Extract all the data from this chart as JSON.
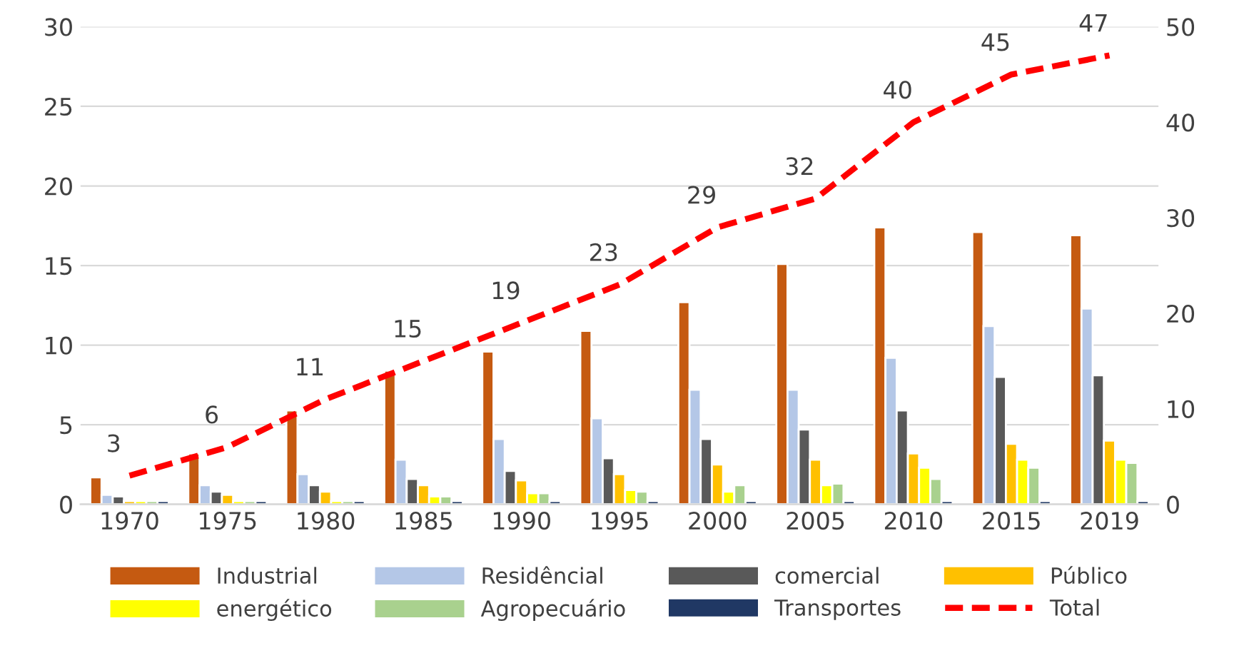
{
  "chart_data": {
    "type": "bar",
    "categories": [
      "1970",
      "1975",
      "1980",
      "1985",
      "1990",
      "1995",
      "2000",
      "2005",
      "2010",
      "2015",
      "2019"
    ],
    "series": [
      {
        "name": "Industrial",
        "color": "#c55a11",
        "values": [
          1.7,
          3.2,
          5.9,
          8.4,
          9.6,
          10.9,
          12.7,
          15.1,
          17.4,
          17.1,
          16.9
        ]
      },
      {
        "name": "Residêncial",
        "color": "#b4c7e7",
        "values": [
          0.6,
          1.2,
          1.9,
          2.8,
          4.1,
          5.4,
          7.2,
          7.2,
          9.2,
          11.2,
          12.3
        ]
      },
      {
        "name": "comercial",
        "color": "#595959",
        "values": [
          0.5,
          0.8,
          1.2,
          1.6,
          2.1,
          2.9,
          4.1,
          4.7,
          5.9,
          8.0,
          8.1
        ]
      },
      {
        "name": "Público",
        "color": "#ffc000",
        "values": [
          0.2,
          0.6,
          0.8,
          1.2,
          1.5,
          1.9,
          2.5,
          2.8,
          3.2,
          3.8,
          4.0
        ]
      },
      {
        "name": "energético",
        "color": "#ffff00",
        "values": [
          0.2,
          0.2,
          0.2,
          0.5,
          0.7,
          0.9,
          0.8,
          1.2,
          2.3,
          2.8,
          2.8
        ]
      },
      {
        "name": "Agropecuário",
        "color": "#a9d18e",
        "values": [
          0.2,
          0.2,
          0.2,
          0.5,
          0.7,
          0.8,
          1.2,
          1.3,
          1.6,
          2.3,
          2.6
        ]
      },
      {
        "name": "Transportes",
        "color": "#203864",
        "values": [
          0.2,
          0.2,
          0.2,
          0.2,
          0.2,
          0.2,
          0.2,
          0.2,
          0.2,
          0.2,
          0.2
        ]
      },
      {
        "name": "Total",
        "type": "line",
        "axis": "y2",
        "color": "#ff0000",
        "line_style": "dashed",
        "values": [
          3,
          6,
          11,
          15,
          19,
          23,
          29,
          32,
          40,
          45,
          47
        ],
        "data_labels": true
      }
    ],
    "ylim": [
      0,
      30
    ],
    "yticks": [
      0,
      5,
      10,
      15,
      20,
      25,
      30
    ],
    "y2lim": [
      0,
      50
    ],
    "y2ticks": [
      0,
      10,
      20,
      30,
      40,
      50
    ],
    "grid": "y",
    "legend": "bottom"
  }
}
